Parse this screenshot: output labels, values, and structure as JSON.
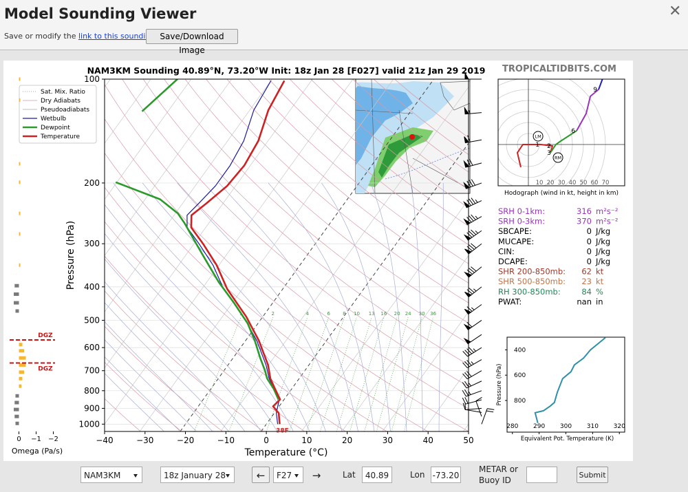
{
  "header": {
    "title": "Model Sounding Viewer",
    "close": "✕",
    "save_text": "Save or modify the",
    "link": "link to this sounding",
    "save_end": ".",
    "button": "Save/Download Image"
  },
  "watermark": "TROPICALTIDBITS.COM",
  "skewt": {
    "type": "skewt",
    "title": "NAM3KM Sounding 40.89°N, 73.20°W Init: 18z Jan 28 [F027] valid 21z Jan 29 2019",
    "xlabel": "Temperature (°C)",
    "ylabel": "Pressure (hPa)",
    "xlim": [
      -40,
      50
    ],
    "ylim": [
      1050,
      100
    ],
    "log_y": true,
    "xticks": [
      {
        "value": -40,
        "label": "−40"
      },
      {
        "value": -30,
        "label": "−30"
      },
      {
        "value": -20,
        "label": "−20"
      },
      {
        "value": -10,
        "label": "−10"
      },
      0,
      10,
      20,
      30,
      40,
      50
    ],
    "yticks": [
      100,
      200,
      300,
      400,
      500,
      600,
      700,
      800,
      900,
      1000
    ],
    "legend": [
      {
        "name": "Sat. Mix. Ratio",
        "color": "#8a8a8a",
        "dash": "1,2"
      },
      {
        "name": "Dry Adiabats",
        "color": "#d99aa6",
        "dash": "none"
      },
      {
        "name": "Pseudoadiabats",
        "color": "#a9a9a9",
        "dash": "none"
      }
    ],
    "series": [
      {
        "name": "Wetbulb",
        "color": "#1a1aa8",
        "width": 1.2,
        "pressure": [
          1000,
          929,
          848,
          791,
          738,
          674,
          573,
          488,
          406,
          346,
          301,
          269,
          248,
          229,
          204,
          178,
          151,
          123,
          101
        ],
        "values": [
          2.8,
          0.5,
          -1.2,
          -4.3,
          -7.4,
          -10.6,
          -17.2,
          -24.8,
          -34.6,
          -41.5,
          -48.6,
          -54.6,
          -56.8,
          -56.0,
          -55.0,
          -55.0,
          -56.0,
          -59.0,
          -60.0
        ]
      },
      {
        "name": "Dewpoint",
        "color": "#2a9a2a",
        "width": 2.6,
        "pressure": [
          848,
          791,
          738,
          699,
          643,
          573,
          511,
          445,
          388,
          338,
          301,
          262,
          245,
          223,
          199,
          null,
          124,
          100
        ],
        "values": [
          -1.4,
          -4.4,
          -7.9,
          -9.9,
          -13.3,
          -17.7,
          -22.5,
          -29.6,
          -37.0,
          -43.7,
          -49.3,
          -55.9,
          -59.4,
          -66.3,
          -80.3,
          null,
          -86.4,
          -83.4
        ]
      },
      {
        "name": "Temperature",
        "color": "#cc2222",
        "width": 2.6,
        "pressure": [
          1000,
          929,
          888,
          848,
          791,
          738,
          674,
          573,
          488,
          406,
          346,
          301,
          269,
          248,
          229,
          204,
          178,
          151,
          123,
          101
        ],
        "values": [
          3.3,
          1.1,
          -1.5,
          -1.0,
          -4.1,
          -7.1,
          -10.1,
          -16.7,
          -24.1,
          -33.7,
          -40.6,
          -47.6,
          -53.6,
          -55.7,
          -54.1,
          -52.1,
          -51.5,
          -52.4,
          -55.4,
          -56.7
        ]
      }
    ],
    "surface_label": "38F",
    "mixing_ratios": [
      1,
      2,
      4,
      6,
      8,
      10,
      13,
      16,
      20,
      24,
      30,
      36
    ],
    "wind": {
      "pressure": [
        1000,
        950,
        925,
        900,
        850,
        800,
        750,
        700,
        650,
        600,
        550,
        500,
        450,
        400,
        350,
        300,
        275,
        250,
        225,
        200,
        175,
        150,
        125,
        100
      ],
      "speed": [
        20,
        12,
        10,
        12,
        22,
        25,
        28,
        32,
        38,
        45,
        52,
        60,
        68,
        75,
        80,
        82,
        85,
        88,
        85,
        80,
        70,
        60,
        55,
        50
      ],
      "direction": [
        20,
        340,
        280,
        265,
        255,
        250,
        245,
        240,
        240,
        238,
        236,
        235,
        234,
        232,
        231,
        232,
        235,
        240,
        245,
        250,
        255,
        260,
        265,
        270
      ]
    }
  },
  "omega": {
    "type": "bar",
    "xlabel": "Omega (Pa/s)",
    "xlim": [
      0.7,
      -2.5
    ],
    "xticks": [
      0,
      {
        "value": -1,
        "label": "−1"
      },
      {
        "value": -2,
        "label": "−2"
      }
    ],
    "series": [
      {
        "color": "#f5b731",
        "pressure": [
          100,
          115,
          176,
          199,
          245,
          281,
          346,
          588,
          613,
          643,
          674,
          707,
          738,
          776
        ],
        "values": [
          -0.05,
          -0.05,
          -0.05,
          -0.05,
          -0.05,
          -0.05,
          -0.05,
          -0.2,
          -0.3,
          -0.4,
          -0.4,
          -0.3,
          -0.2,
          -0.15
        ]
      },
      {
        "color": "#7a7a7a",
        "pressure": [
          397,
          420,
          445,
          470,
          828,
          866,
          907,
          950,
          995
        ],
        "values": [
          0.25,
          0.3,
          0.3,
          0.2,
          0.2,
          0.25,
          0.3,
          0.25,
          0.2
        ]
      }
    ],
    "dgz": {
      "labels": [
        "DGZ",
        "DGZ"
      ],
      "pressure": [
        570,
        665
      ],
      "color": "#cc1111"
    }
  },
  "hodograph": {
    "type": "hodograph",
    "caption": "Hodograph (wind in kt, height in km)",
    "rings": [
      10,
      20,
      30,
      40,
      50,
      60,
      70
    ],
    "series": [
      {
        "color": "#cc2222",
        "u": [
          -6.9,
          -10,
          -5,
          11.3,
          21.9,
          20
        ],
        "v": [
          -20.6,
          -7.5,
          0,
          0,
          -1.3,
          -7.5
        ]
      },
      {
        "color": "#2a9a2a",
        "u": [
          20,
          25,
          29.4,
          43.8
        ],
        "v": [
          -7.5,
          0,
          3.1,
          12.5
        ]
      },
      {
        "color": "#9933bb",
        "u": [
          43.8,
          52.5,
          56.3,
          63.8
        ],
        "v": [
          12.5,
          28.1,
          43.8,
          50
        ]
      },
      {
        "color": "#1f1fbf",
        "u": [
          63.8,
          67.5
        ],
        "v": [
          50,
          60
        ]
      }
    ],
    "markers": {
      "labels": [
        "1",
        "2",
        "3",
        "6",
        "9"
      ],
      "u": [
        11.3,
        21.9,
        21.9,
        43.8,
        63.8
      ],
      "v": [
        0,
        -1.3,
        -7.5,
        12.5,
        50
      ]
    },
    "storm_motion": {
      "labels": [
        "LM",
        "RM"
      ],
      "u": [
        8.8,
        26.9
      ],
      "v": [
        7.5,
        -11.9
      ]
    }
  },
  "indices": {
    "rows": [
      {
        "label": "SRH 0-1km:",
        "value": 316,
        "unit": "m²s⁻²",
        "color": "#9933bb"
      },
      {
        "label": "SRH 0-3km:",
        "value": 370,
        "unit": "m²s⁻²",
        "color": "#9933bb"
      },
      {
        "label": "SBCAPE:",
        "value": 0,
        "unit": "J/kg",
        "color": "#000000"
      },
      {
        "label": "MUCAPE:",
        "value": 0,
        "unit": "J/kg",
        "color": "#000000"
      },
      {
        "label": "CIN:",
        "value": 0,
        "unit": "J/kg",
        "color": "#000000"
      },
      {
        "label": "DCAPE:",
        "value": 0,
        "unit": "J/kg",
        "color": "#000000"
      },
      {
        "label": "SHR 200-850mb:",
        "value": 62,
        "unit": "kt",
        "color": "#a0392a"
      },
      {
        "label": "SHR 500-850mb:",
        "value": 23,
        "unit": "kt",
        "color": "#c0744a"
      },
      {
        "label": "RH 300-850mb:",
        "value": 84,
        "unit": "%",
        "color": "#1f8a5a"
      },
      {
        "label": "PWAT:",
        "value": "nan",
        "unit": "in",
        "color": "#000000"
      }
    ]
  },
  "theta_e": {
    "type": "line",
    "xlabel": "Equivalent Pot. Temperature (K)",
    "ylabel": "Pressure (hPa)",
    "xlim": [
      278,
      322
    ],
    "ylim": [
      1050,
      300
    ],
    "xticks": [
      280,
      290,
      300,
      310,
      320
    ],
    "yticks": [
      400,
      600,
      800
    ],
    "series": [
      {
        "color": "#2f8fa8",
        "pressure": [
          978,
          897,
          881,
          843,
          816,
          735,
          627,
          573,
          519,
          465,
          400,
          357,
          303
        ],
        "values": [
          289.5,
          288.5,
          291.6,
          294.2,
          295.7,
          296.8,
          298.8,
          301.9,
          303.2,
          306.6,
          309.2,
          311.7,
          314.8
        ]
      }
    ]
  },
  "controls": {
    "model": "NAM3KM",
    "init": "18z January 28",
    "prev": "←",
    "hour": "F27",
    "next": "→",
    "lat_label": "Lat",
    "lat": "40.89",
    "lon_label": "Lon",
    "lon": "-73.20",
    "station_label": [
      "METAR or",
      "Buoy ID"
    ],
    "station": "",
    "submit": "Submit"
  }
}
